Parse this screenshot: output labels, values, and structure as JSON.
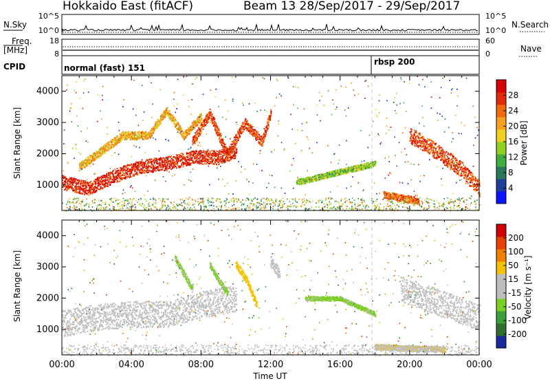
{
  "header": {
    "station": "Hokkaido East (fitACF)",
    "beam_date": "Beam 13  28/Sep/2017 - 29/Sep/2017"
  },
  "noise_panel": {
    "left_label": "N.Sky",
    "right_label": "N.Search",
    "left_ticks": [
      "10^5",
      "10^0"
    ],
    "right_ticks": [
      "10^5",
      "10^0"
    ]
  },
  "freq_panel": {
    "left_label_1": "Freq.",
    "left_label_2": "[MHz]",
    "right_label": "Nave",
    "left_ticks": [
      "18",
      "8"
    ],
    "right_ticks": [
      "60",
      "0"
    ]
  },
  "cpid_panel": {
    "label": "CPID",
    "modes": [
      {
        "text": "normal (fast) 151",
        "start_hour": 0
      },
      {
        "text": "rbsp 200",
        "start_hour": 18
      }
    ]
  },
  "chart_data": [
    {
      "type": "heatmap",
      "name": "power",
      "ylabel": "Slant Range [km]",
      "xlim": [
        0,
        24
      ],
      "ylim": [
        180,
        4500
      ],
      "yticks": [
        1000,
        2000,
        3000,
        4000
      ],
      "colorbar": {
        "label": "Power [dB]",
        "ticks": [
          "28",
          "24",
          "20",
          "16",
          "12",
          "8",
          "4"
        ],
        "range": [
          0,
          32
        ],
        "colors": [
          "#0a14ff",
          "#1e3f9a",
          "#2a7a5a",
          "#3fae3f",
          "#8fd020",
          "#f0d020",
          "#f7a020",
          "#f06a10",
          "#e02a08",
          "#d80000"
        ]
      },
      "echo_bands": [
        {
          "x": [
            0.0,
            1.5,
            3.0,
            4.5,
            6.0,
            7.5,
            9.0,
            10.0
          ],
          "y": [
            1100,
            900,
            1300,
            1600,
            1700,
            1900,
            1900,
            2100
          ],
          "width": 220,
          "level": 28
        },
        {
          "x": [
            1.0,
            2.0,
            3.5,
            5.0,
            6.0,
            7.0,
            8.0
          ],
          "y": [
            1600,
            2000,
            2600,
            2600,
            3400,
            2600,
            3200
          ],
          "width": 130,
          "level": 20
        },
        {
          "x": [
            7.5,
            8.5,
            9.5,
            10.5,
            11.5,
            12.0
          ],
          "y": [
            2400,
            3300,
            2000,
            3000,
            2400,
            3300
          ],
          "width": 150,
          "level": 26
        },
        {
          "x": [
            20.0,
            21.0,
            22.0,
            23.0,
            24.0
          ],
          "y": [
            2600,
            2300,
            1900,
            1500,
            900
          ],
          "width": 250,
          "level": 26
        },
        {
          "x": [
            18.5,
            19.5,
            20.5
          ],
          "y": [
            700,
            600,
            500
          ],
          "width": 110,
          "level": 24
        },
        {
          "x": [
            13.5,
            15.0,
            16.5,
            18.0
          ],
          "y": [
            1100,
            1300,
            1500,
            1700
          ],
          "width": 90,
          "level": 14
        }
      ],
      "ground_scatter_range": [
        180,
        600
      ]
    },
    {
      "type": "heatmap",
      "name": "velocity",
      "ylabel": "Slant Range [km]",
      "xlabel": "Time UT",
      "xlim": [
        0,
        24
      ],
      "ylim": [
        180,
        4500
      ],
      "yticks": [
        1000,
        2000,
        3000,
        4000
      ],
      "xticks": [
        "00:00",
        "04:00",
        "08:00",
        "12:00",
        "16:00",
        "20:00",
        "00:00"
      ],
      "colorbar": {
        "label": "Velocity [m s⁻¹]",
        "ticks": [
          "200",
          "100",
          "50",
          "15",
          "-15",
          "-50",
          "-100",
          "-200"
        ],
        "range": [
          -250,
          250
        ],
        "colors": [
          "#1a2a9c",
          "#2f6f2f",
          "#3aa03a",
          "#7ad020",
          "#bebebe",
          "#bebebe",
          "#f5c200",
          "#f08000",
          "#e84000",
          "#d00000"
        ]
      },
      "echo_bands": [
        {
          "x": [
            0.0,
            2.0,
            4.0,
            6.0,
            8.0,
            10.0
          ],
          "y": [
            1200,
            1400,
            1500,
            1500,
            1800,
            2000
          ],
          "width": 420,
          "level": 0
        },
        {
          "x": [
            6.5,
            7.0,
            7.5
          ],
          "y": [
            3300,
            2800,
            2300
          ],
          "width": 90,
          "level": -60
        },
        {
          "x": [
            8.5,
            9.0,
            9.5
          ],
          "y": [
            3100,
            2600,
            2200
          ],
          "width": 90,
          "level": -60
        },
        {
          "x": [
            10.0,
            10.6,
            11.2
          ],
          "y": [
            3100,
            2600,
            1800
          ],
          "width": 110,
          "level": 70
        },
        {
          "x": [
            12.0,
            12.5
          ],
          "y": [
            3200,
            2800
          ],
          "width": 180,
          "level": 0
        },
        {
          "x": [
            19.5,
            21.0,
            22.5,
            24.0
          ],
          "y": [
            2300,
            2000,
            1700,
            1400
          ],
          "width": 420,
          "level": 0
        },
        {
          "x": [
            14.0,
            16.0,
            18.0
          ],
          "y": [
            2000,
            2000,
            1500
          ],
          "width": 70,
          "level": -60
        },
        {
          "x": [
            18.0,
            20.0,
            22.0
          ],
          "y": [
            450,
            400,
            380
          ],
          "width": 90,
          "level": 40
        }
      ],
      "ground_scatter_range": [
        180,
        520
      ]
    }
  ]
}
